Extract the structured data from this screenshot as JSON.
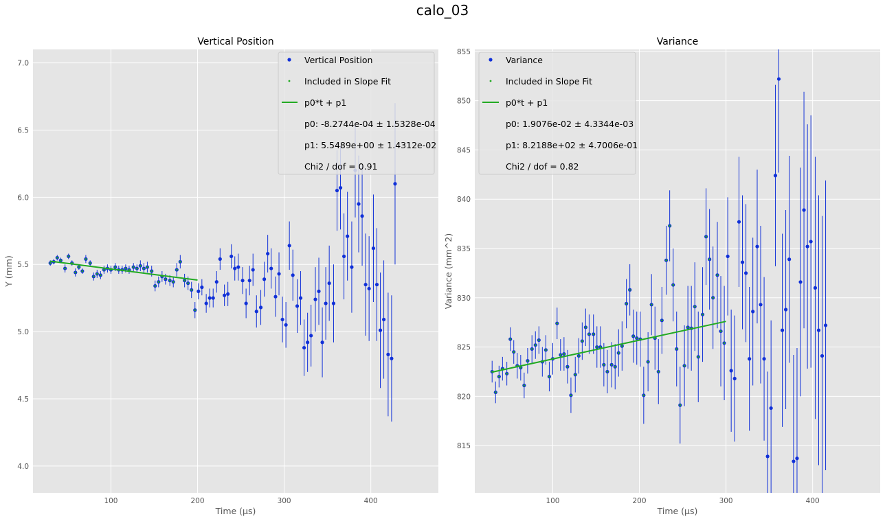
{
  "figure": {
    "suptitle": "calo_03"
  },
  "chart_data": [
    {
      "type": "scatter",
      "title": "Vertical Position",
      "xlabel": "Time (μs)",
      "ylabel": "Y (mm)",
      "xlim": [
        10,
        478
      ],
      "ylim": [
        3.8,
        7.1
      ],
      "xticks": [
        100,
        200,
        300,
        400
      ],
      "yticks": [
        4.0,
        4.5,
        5.0,
        5.5,
        6.0,
        6.5,
        7.0
      ],
      "ytick_decimals": 1,
      "grid": true,
      "legend_position": "top-right",
      "legend": {
        "data_label": "Vertical Position",
        "fit_points_label": "Included in Slope Fit",
        "fit_line_label": "p0*t + p1",
        "text_lines": [
          "p0: -8.2744e-04 ± 1.5328e-04",
          "p1: 5.5489e+00 ± 1.4312e-02",
          "Chi2 / dof = 0.91"
        ]
      },
      "fit_range": [
        30,
        200
      ],
      "fit": {
        "p0": -0.00082744,
        "p1": 5.5489
      },
      "points": [
        [
          30,
          5.51,
          0.02
        ],
        [
          34,
          5.52,
          0.02
        ],
        [
          38,
          5.55,
          0.02
        ],
        [
          42,
          5.53,
          0.02
        ],
        [
          47,
          5.47,
          0.03
        ],
        [
          51,
          5.56,
          0.02
        ],
        [
          55,
          5.51,
          0.02
        ],
        [
          59,
          5.44,
          0.03
        ],
        [
          63,
          5.48,
          0.02
        ],
        [
          67,
          5.45,
          0.02
        ],
        [
          71,
          5.54,
          0.03
        ],
        [
          76,
          5.51,
          0.02
        ],
        [
          80,
          5.41,
          0.03
        ],
        [
          84,
          5.43,
          0.03
        ],
        [
          88,
          5.42,
          0.03
        ],
        [
          92,
          5.46,
          0.03
        ],
        [
          96,
          5.47,
          0.03
        ],
        [
          100,
          5.46,
          0.03
        ],
        [
          105,
          5.48,
          0.03
        ],
        [
          109,
          5.46,
          0.03
        ],
        [
          113,
          5.46,
          0.03
        ],
        [
          117,
          5.47,
          0.03
        ],
        [
          121,
          5.46,
          0.03
        ],
        [
          126,
          5.48,
          0.03
        ],
        [
          130,
          5.47,
          0.03
        ],
        [
          134,
          5.49,
          0.04
        ],
        [
          138,
          5.47,
          0.04
        ],
        [
          142,
          5.48,
          0.04
        ],
        [
          147,
          5.45,
          0.04
        ],
        [
          151,
          5.34,
          0.04
        ],
        [
          155,
          5.37,
          0.04
        ],
        [
          159,
          5.41,
          0.04
        ],
        [
          163,
          5.39,
          0.04
        ],
        [
          168,
          5.38,
          0.04
        ],
        [
          172,
          5.37,
          0.04
        ],
        [
          176,
          5.46,
          0.05
        ],
        [
          180,
          5.52,
          0.05
        ],
        [
          185,
          5.38,
          0.05
        ],
        [
          189,
          5.36,
          0.05
        ],
        [
          193,
          5.31,
          0.06
        ],
        [
          197,
          5.16,
          0.06
        ],
        [
          201,
          5.3,
          0.06
        ],
        [
          205,
          5.33,
          0.06
        ],
        [
          210,
          5.21,
          0.07
        ],
        [
          214,
          5.25,
          0.07
        ],
        [
          218,
          5.25,
          0.07
        ],
        [
          222,
          5.37,
          0.08
        ],
        [
          226,
          5.54,
          0.08
        ],
        [
          231,
          5.27,
          0.08
        ],
        [
          235,
          5.28,
          0.09
        ],
        [
          239,
          5.56,
          0.09
        ],
        [
          243,
          5.47,
          0.09
        ],
        [
          247,
          5.48,
          0.1
        ],
        [
          252,
          5.38,
          0.1
        ],
        [
          256,
          5.21,
          0.11
        ],
        [
          260,
          5.38,
          0.11
        ],
        [
          264,
          5.46,
          0.12
        ],
        [
          268,
          5.15,
          0.12
        ],
        [
          273,
          5.18,
          0.13
        ],
        [
          277,
          5.39,
          0.13
        ],
        [
          281,
          5.58,
          0.14
        ],
        [
          285,
          5.47,
          0.15
        ],
        [
          290,
          5.26,
          0.15
        ],
        [
          294,
          5.43,
          0.16
        ],
        [
          298,
          5.09,
          0.17
        ],
        [
          302,
          5.05,
          0.17
        ],
        [
          306,
          5.64,
          0.18
        ],
        [
          310,
          5.42,
          0.19
        ],
        [
          315,
          5.19,
          0.2
        ],
        [
          319,
          5.25,
          0.2
        ],
        [
          323,
          4.88,
          0.21
        ],
        [
          327,
          4.92,
          0.22
        ],
        [
          331,
          4.97,
          0.23
        ],
        [
          336,
          5.24,
          0.24
        ],
        [
          340,
          5.3,
          0.25
        ],
        [
          344,
          4.92,
          0.26
        ],
        [
          348,
          5.21,
          0.27
        ],
        [
          352,
          5.36,
          0.28
        ],
        [
          357,
          5.21,
          0.29
        ],
        [
          361,
          6.05,
          0.3
        ],
        [
          365,
          6.07,
          0.31
        ],
        [
          369,
          5.56,
          0.32
        ],
        [
          373,
          5.71,
          0.33
        ],
        [
          378,
          5.48,
          0.34
        ],
        [
          382,
          6.2,
          0.35
        ],
        [
          386,
          5.95,
          0.36
        ],
        [
          390,
          5.86,
          0.37
        ],
        [
          394,
          5.35,
          0.38
        ],
        [
          398,
          5.32,
          0.39
        ],
        [
          403,
          5.62,
          0.4
        ],
        [
          407,
          5.35,
          0.42
        ],
        [
          411,
          5.01,
          0.43
        ],
        [
          415,
          5.09,
          0.44
        ],
        [
          420,
          4.83,
          0.46
        ],
        [
          424,
          4.8,
          0.47
        ],
        [
          428,
          6.1,
          0.6
        ]
      ]
    },
    {
      "type": "scatter",
      "title": "Variance",
      "xlabel": "Time (μs)",
      "ylabel": "Variance (mm^2)",
      "xlim": [
        10,
        478
      ],
      "ylim": [
        810.2,
        855.2
      ],
      "xticks": [
        100,
        200,
        300,
        400
      ],
      "yticks": [
        815,
        820,
        825,
        830,
        835,
        840,
        845,
        850,
        855
      ],
      "ytick_decimals": 0,
      "grid": true,
      "legend_position": "top-left",
      "legend": {
        "data_label": "Variance",
        "fit_points_label": "Included in Slope Fit",
        "fit_line_label": "p0*t + p1",
        "text_lines": [
          "p0: 1.9076e-02 ± 4.3344e-03",
          "p1: 8.2188e+02 ± 4.7006e-01",
          "Chi2 / dof = 0.82"
        ]
      },
      "fit_range": [
        30,
        300
      ],
      "fit": {
        "p0": 0.019076,
        "p1": 821.88
      },
      "points": [
        [
          30,
          822.5,
          1.1
        ],
        [
          34,
          820.4,
          1.1
        ],
        [
          38,
          822.0,
          1.1
        ],
        [
          42,
          822.8,
          1.2
        ],
        [
          47,
          822.3,
          1.2
        ],
        [
          51,
          825.8,
          1.2
        ],
        [
          55,
          824.5,
          1.2
        ],
        [
          59,
          823.1,
          1.3
        ],
        [
          63,
          822.9,
          1.3
        ],
        [
          67,
          821.1,
          1.3
        ],
        [
          71,
          823.6,
          1.3
        ],
        [
          76,
          824.8,
          1.4
        ],
        [
          80,
          825.2,
          1.4
        ],
        [
          84,
          825.7,
          1.4
        ],
        [
          88,
          823.5,
          1.5
        ],
        [
          92,
          824.7,
          1.5
        ],
        [
          96,
          822.0,
          1.5
        ],
        [
          100,
          823.8,
          1.6
        ],
        [
          105,
          827.4,
          1.6
        ],
        [
          109,
          824.2,
          1.6
        ],
        [
          113,
          824.3,
          1.7
        ],
        [
          117,
          823.0,
          1.7
        ],
        [
          121,
          820.1,
          1.8
        ],
        [
          126,
          822.2,
          1.8
        ],
        [
          130,
          824.1,
          1.8
        ],
        [
          134,
          825.6,
          1.9
        ],
        [
          138,
          827.0,
          1.9
        ],
        [
          142,
          826.3,
          2.0
        ],
        [
          147,
          826.3,
          2.0
        ],
        [
          151,
          825.0,
          2.1
        ],
        [
          155,
          825.0,
          2.1
        ],
        [
          159,
          823.2,
          2.2
        ],
        [
          163,
          822.5,
          2.2
        ],
        [
          168,
          823.2,
          2.3
        ],
        [
          172,
          823.0,
          2.3
        ],
        [
          176,
          824.4,
          2.4
        ],
        [
          180,
          825.1,
          2.5
        ],
        [
          185,
          829.4,
          2.5
        ],
        [
          189,
          830.8,
          2.6
        ],
        [
          193,
          826.1,
          2.7
        ],
        [
          197,
          825.9,
          2.7
        ],
        [
          201,
          825.8,
          2.8
        ],
        [
          205,
          820.1,
          2.9
        ],
        [
          210,
          823.5,
          3.0
        ],
        [
          214,
          829.3,
          3.1
        ],
        [
          218,
          825.9,
          3.2
        ],
        [
          222,
          822.5,
          3.3
        ],
        [
          226,
          827.7,
          3.4
        ],
        [
          231,
          833.8,
          3.5
        ],
        [
          235,
          837.3,
          3.6
        ],
        [
          239,
          831.3,
          3.7
        ],
        [
          243,
          824.8,
          3.8
        ],
        [
          247,
          819.1,
          3.9
        ],
        [
          252,
          823.1,
          4.1
        ],
        [
          256,
          827.0,
          4.2
        ],
        [
          260,
          826.9,
          4.3
        ],
        [
          264,
          829.1,
          4.5
        ],
        [
          268,
          824.0,
          4.6
        ],
        [
          273,
          828.3,
          4.8
        ],
        [
          277,
          836.2,
          4.9
        ],
        [
          281,
          833.9,
          5.1
        ],
        [
          285,
          830.0,
          5.2
        ],
        [
          290,
          832.3,
          5.4
        ],
        [
          294,
          826.6,
          5.6
        ],
        [
          298,
          825.4,
          5.8
        ],
        [
          302,
          834.2,
          6.0
        ],
        [
          306,
          822.6,
          6.2
        ],
        [
          310,
          821.8,
          6.4
        ],
        [
          315,
          837.7,
          6.6
        ],
        [
          319,
          833.6,
          6.8
        ],
        [
          323,
          832.5,
          7.0
        ],
        [
          327,
          823.8,
          7.3
        ],
        [
          331,
          828.6,
          7.5
        ],
        [
          336,
          835.2,
          7.8
        ],
        [
          340,
          829.3,
          8.0
        ],
        [
          344,
          823.8,
          8.3
        ],
        [
          348,
          813.9,
          8.6
        ],
        [
          352,
          818.8,
          8.9
        ],
        [
          357,
          842.4,
          9.2
        ],
        [
          361,
          852.2,
          9.5
        ],
        [
          365,
          826.7,
          9.8
        ],
        [
          369,
          828.8,
          10.1
        ],
        [
          373,
          833.9,
          10.5
        ],
        [
          378,
          813.4,
          10.8
        ],
        [
          382,
          813.7,
          11.2
        ],
        [
          386,
          831.6,
          11.6
        ],
        [
          390,
          838.9,
          12.0
        ],
        [
          394,
          835.2,
          12.4
        ],
        [
          398,
          835.7,
          12.8
        ],
        [
          403,
          831.0,
          13.3
        ],
        [
          407,
          826.7,
          13.7
        ],
        [
          411,
          824.1,
          14.2
        ],
        [
          415,
          827.2,
          14.7
        ]
      ]
    }
  ]
}
